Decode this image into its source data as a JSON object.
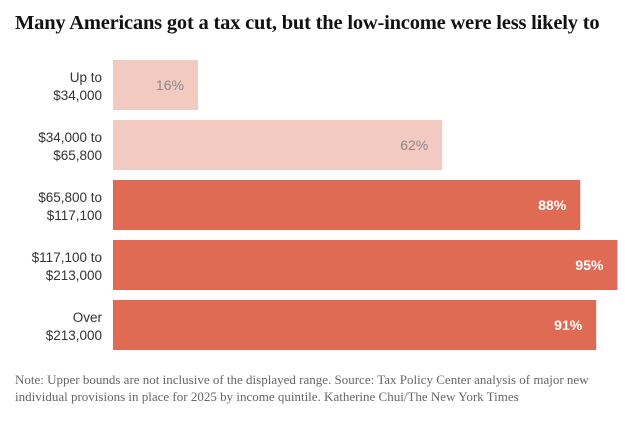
{
  "chart_data": {
    "type": "bar",
    "orientation": "horizontal",
    "title": "Many Americans got a tax cut, but the low-income were less likely to",
    "categories": [
      [
        "Up to",
        "$34,000"
      ],
      [
        "$34,000 to",
        "$65,800"
      ],
      [
        "$65,800 to",
        "$117,100"
      ],
      [
        "$117,100 to",
        "$213,000"
      ],
      [
        "Over",
        "$213,000"
      ]
    ],
    "values": [
      16,
      62,
      88,
      95,
      91
    ],
    "data_labels": [
      "16%",
      "62%",
      "88%",
      "95%",
      "91%"
    ],
    "unit": "%",
    "xlim": [
      0,
      100
    ],
    "grid": false,
    "colors": {
      "light": "#f3cac2",
      "dark": "#e06b55",
      "light_label": "#888888",
      "dark_label": "#ffffff"
    },
    "bar_shades": [
      "light",
      "light",
      "dark",
      "dark",
      "dark"
    ]
  },
  "note": "Note: Upper bounds are not inclusive of the displayed range.  Source: Tax Policy Center analysis of major new individual provisions in place for 2025 by income quintile.  Katherine Chui/The New York Times"
}
